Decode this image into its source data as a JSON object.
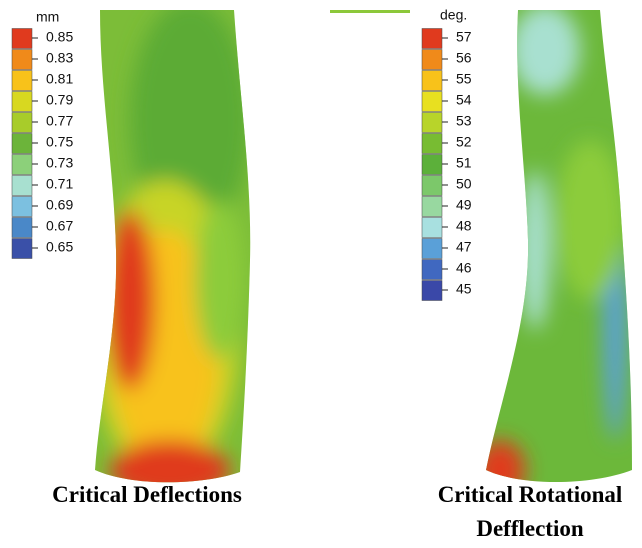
{
  "panels": [
    {
      "unit": "mm",
      "caption": [
        "Critical Deflections"
      ],
      "legend": [
        {
          "label": "0.85",
          "color": "#e03a1e"
        },
        {
          "label": "0.83",
          "color": "#f08a1a"
        },
        {
          "label": "0.81",
          "color": "#f8c21a"
        },
        {
          "label": "0.79",
          "color": "#d8d820"
        },
        {
          "label": "0.77",
          "color": "#a8cc2a"
        },
        {
          "label": "0.75",
          "color": "#6cb43a"
        },
        {
          "label": "0.73",
          "color": "#8cd07a"
        },
        {
          "label": "0.71",
          "color": "#a8e0d0"
        },
        {
          "label": "0.69",
          "color": "#7cc0e0"
        },
        {
          "label": "0.67",
          "color": "#4a88c8"
        },
        {
          "label": "0.65",
          "color": "#3a50a8"
        }
      ]
    },
    {
      "unit": "deg.",
      "caption": [
        "Critical Rotational",
        "Defflection"
      ],
      "legend": [
        {
          "label": "57",
          "color": "#e03a1e"
        },
        {
          "label": "56",
          "color": "#f08a1a"
        },
        {
          "label": "55",
          "color": "#f8c21a"
        },
        {
          "label": "54",
          "color": "#e8e020"
        },
        {
          "label": "53",
          "color": "#b8d42a"
        },
        {
          "label": "52",
          "color": "#78bc32"
        },
        {
          "label": "51",
          "color": "#5cb03a"
        },
        {
          "label": "50",
          "color": "#7cc86a"
        },
        {
          "label": "49",
          "color": "#98d8a0"
        },
        {
          "label": "48",
          "color": "#a8e0e0"
        },
        {
          "label": "47",
          "color": "#5aa0d8"
        },
        {
          "label": "46",
          "color": "#4068c0"
        },
        {
          "label": "45",
          "color": "#3a48a8"
        }
      ]
    }
  ]
}
